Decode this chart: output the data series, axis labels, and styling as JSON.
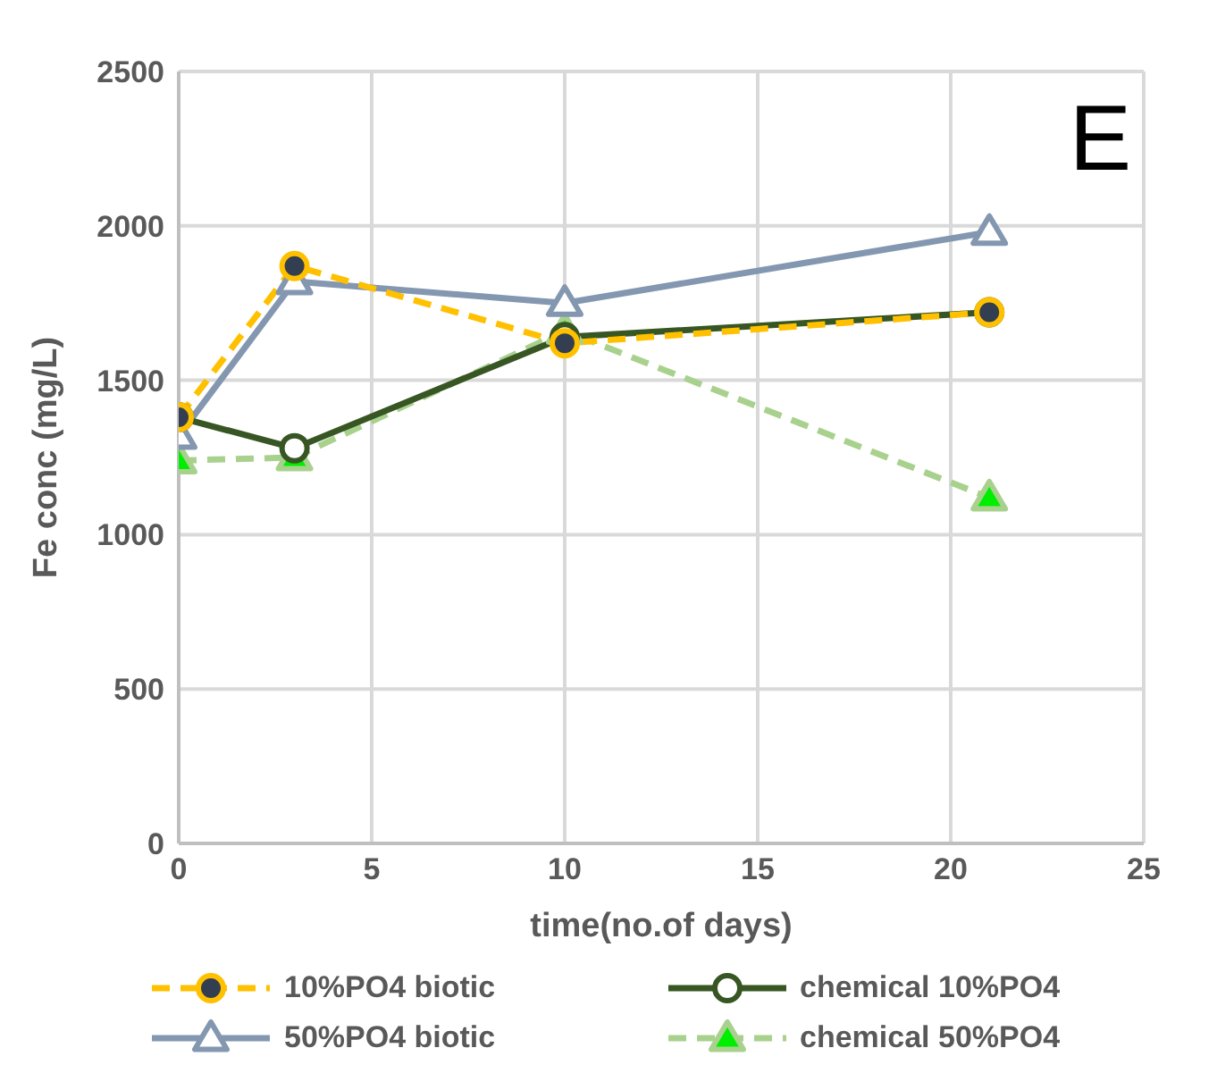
{
  "chart_data": {
    "type": "line",
    "xlabel": "time(no.of days)",
    "ylabel": "Fe conc (mg/L)",
    "annotations": [
      "E"
    ],
    "x": [
      0,
      3,
      10,
      21
    ],
    "series": [
      {
        "name": "10%PO4 biotic",
        "color": "#ffc000",
        "values": [
          1380,
          1870,
          1620,
          1720
        ],
        "marker": "circle",
        "line_style": "dashed"
      },
      {
        "name": "chemical 10%PO4",
        "color": "#375623",
        "values": [
          1380,
          1280,
          1640,
          1720
        ],
        "marker": "circle",
        "line_style": "solid"
      },
      {
        "name": "50%PO4 biotic",
        "color": "#8497b0",
        "values": [
          1320,
          1820,
          1750,
          1980
        ],
        "marker": "triangle",
        "line_style": "solid"
      },
      {
        "name": "chemical 50%PO4",
        "color": "#a9d18e",
        "values": [
          1240,
          1250,
          1660,
          1120
        ],
        "marker": "triangle",
        "line_style": "dashed"
      }
    ],
    "xlim": [
      0,
      25
    ],
    "xticks": [
      0,
      5,
      10,
      15,
      20,
      25
    ],
    "ylim": [
      0,
      2500
    ],
    "yticks": [
      0,
      500,
      1000,
      1500,
      2000,
      2500
    ],
    "grid": true,
    "legend": "bottom"
  }
}
